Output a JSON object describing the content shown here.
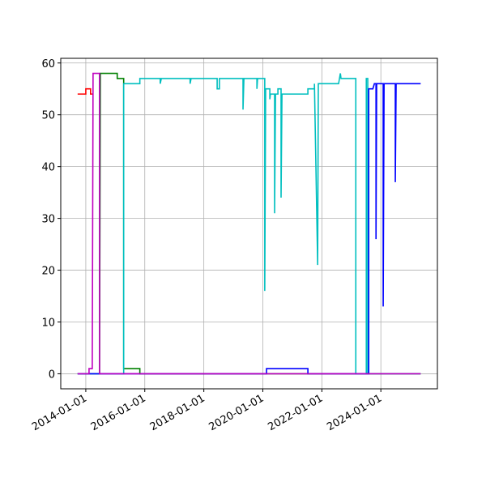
{
  "chart_data": {
    "type": "line",
    "xlim": [
      "2013-02-25",
      "2025-12-01"
    ],
    "xticks": [
      "2014-01-01",
      "2016-01-01",
      "2018-01-01",
      "2020-01-01",
      "2022-01-01",
      "2024-01-01"
    ],
    "ylim": [
      -2.9,
      60.9
    ],
    "yticks": [
      0,
      10,
      20,
      30,
      40,
      50,
      60
    ],
    "grid": true,
    "series": [
      {
        "color": "#ff0000",
        "x": [
          "2013-09-22",
          "2014-01-01",
          "2014-01-01",
          "2014-03-01",
          "2014-03-01",
          "2014-04-01"
        ],
        "values": [
          54,
          54,
          55,
          55,
          54,
          54
        ]
      },
      {
        "color": "#008000",
        "x": [
          "2013-09-22",
          "2014-06-20",
          "2014-06-30",
          "2015-01-25",
          "2015-01-25",
          "2015-04-15",
          "2015-04-15",
          "2015-11-01",
          "2015-11-01",
          "2025-05-08"
        ],
        "values": [
          0,
          0,
          58,
          58,
          57,
          57,
          1,
          1,
          0,
          0
        ]
      },
      {
        "color": "#00bfbf",
        "x": [
          "2013-09-22",
          "2015-04-15",
          "2015-04-15",
          "2015-11-01",
          "2015-11-01",
          "2016-07-10",
          "2016-07-10",
          "2016-07-24",
          "2017-07-15",
          "2017-07-15",
          "2017-07-27",
          "2018-06-15",
          "2018-06-15",
          "2018-07-13",
          "2018-07-13",
          "2019-05-01",
          "2019-05-01",
          "2019-05-12",
          "2019-10-20",
          "2019-10-20",
          "2019-10-28",
          "2020-01-25",
          "2020-01-25",
          "2020-02-05",
          "2020-03-28",
          "2020-03-28",
          "2020-04-04",
          "2020-05-26",
          "2020-05-26",
          "2020-06-06",
          "2020-07-06",
          "2020-07-06",
          "2020-07-27",
          "2020-08-14",
          "2020-08-14",
          "2020-08-25",
          "2021-07-12",
          "2021-07-12",
          "2021-10-01",
          "2021-10-01",
          "2021-11-10",
          "2021-11-18",
          "2022-07-27",
          "2022-08-18",
          "2022-08-26",
          "2023-02-25",
          "2023-02-25",
          "2023-07-05",
          "2023-07-05",
          "2023-07-23",
          "2023-07-23",
          "2025-05-08"
        ],
        "values": [
          0,
          0,
          56,
          56,
          57,
          57,
          56,
          57,
          57,
          56,
          57,
          57,
          55,
          55,
          57,
          57,
          51,
          57,
          57,
          55,
          57,
          57,
          16,
          55,
          55,
          53,
          54,
          54,
          31,
          54,
          54,
          55,
          55,
          55,
          34,
          54,
          54,
          55,
          55,
          56,
          21,
          56,
          56,
          58,
          57,
          57,
          0,
          0,
          57,
          57,
          0,
          0
        ]
      },
      {
        "color": "#0000ff",
        "x": [
          "2013-09-22",
          "2020-02-16",
          "2020-02-16",
          "2021-07-12",
          "2021-07-12",
          "2023-08-04",
          "2023-08-04",
          "2023-09-24",
          "2023-10-13",
          "2023-11-02",
          "2023-11-02",
          "2023-11-10",
          "2024-01-30",
          "2024-01-30",
          "2024-02-10",
          "2024-06-28",
          "2024-06-28",
          "2024-07-08",
          "2025-05-08"
        ],
        "values": [
          0,
          0,
          1,
          1,
          0,
          0,
          55,
          55,
          56,
          56,
          26,
          56,
          56,
          13,
          56,
          56,
          37,
          56,
          56
        ]
      },
      {
        "color": "#bf00bf",
        "x": [
          "2013-09-22",
          "2014-02-10",
          "2014-02-10",
          "2014-03-22",
          "2014-04-01",
          "2014-06-20",
          "2014-06-20",
          "2025-05-08"
        ],
        "values": [
          0,
          0,
          1,
          1,
          58,
          58,
          0,
          0
        ]
      }
    ]
  }
}
